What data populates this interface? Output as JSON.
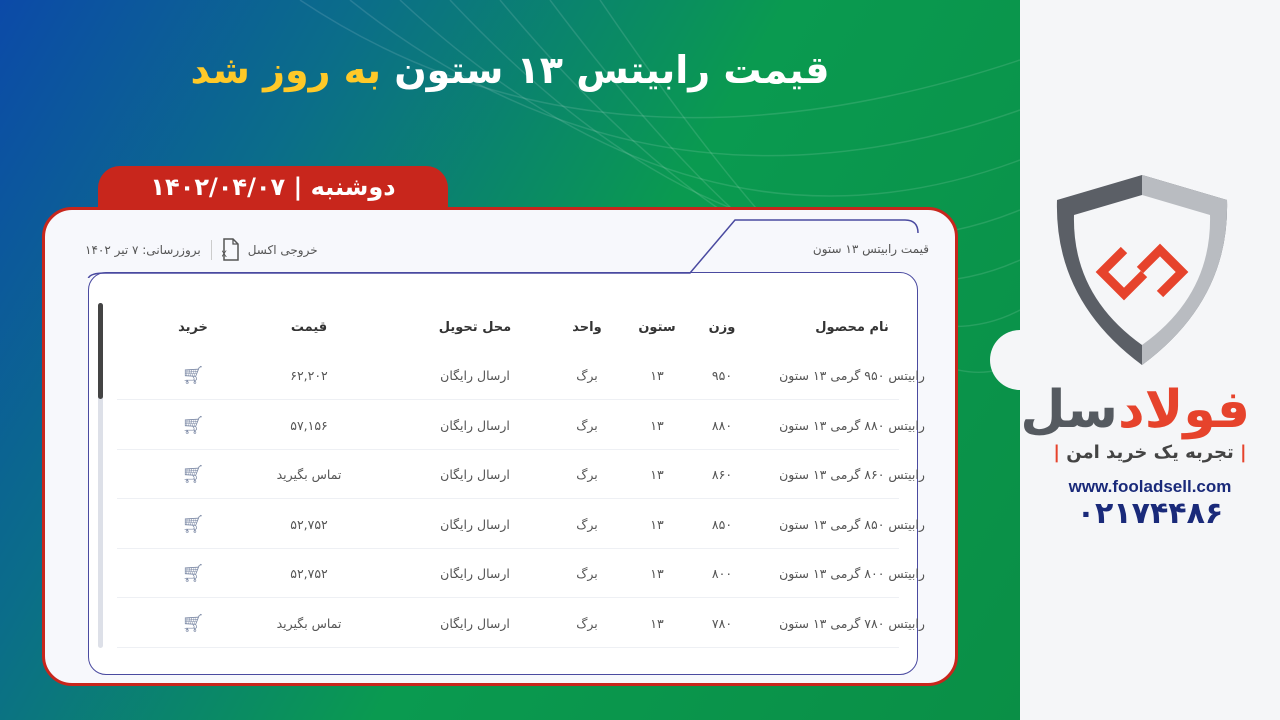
{
  "banner": {
    "title_main": "قیمت رابیتس ۱۳ ستون",
    "title_highlight": "به روز شد",
    "date": "دوشنبه  |  ۱۴۰۲/۰۴/۰۷"
  },
  "card": {
    "title": "قیمت رابیتس ۱۳ ستون",
    "excel_label": "خروجی اکسل",
    "updated": "بروزرسانی: ۷ تیر ۱۴۰۲"
  },
  "table": {
    "headers": [
      "نام محصول",
      "وزن",
      "ستون",
      "واحد",
      "محل تحویل",
      "قیمت",
      "خرید"
    ],
    "rows": [
      [
        "رابیتس ۹۵۰ گرمی ۱۳ ستون",
        "۹۵۰",
        "۱۳",
        "برگ",
        "ارسال رایگان",
        "۶۲,۲۰۲"
      ],
      [
        "رابیتس ۸۸۰ گرمی ۱۳ ستون",
        "۸۸۰",
        "۱۳",
        "برگ",
        "ارسال رایگان",
        "۵۷,۱۵۶"
      ],
      [
        "رابیتس ۸۶۰ گرمی ۱۳ ستون",
        "۸۶۰",
        "۱۳",
        "برگ",
        "ارسال رایگان",
        "تماس بگیرید"
      ],
      [
        "رابیتس ۸۵۰ گرمی ۱۳ ستون",
        "۸۵۰",
        "۱۳",
        "برگ",
        "ارسال رایگان",
        "۵۲,۷۵۲"
      ],
      [
        "رابیتس ۸۰۰ گرمی ۱۳ ستون",
        "۸۰۰",
        "۱۳",
        "برگ",
        "ارسال رایگان",
        "۵۲,۷۵۲"
      ],
      [
        "رابیتس ۷۸۰ گرمی ۱۳ ستون",
        "۷۸۰",
        "۱۳",
        "برگ",
        "ارسال رایگان",
        "تماس بگیرید"
      ]
    ]
  },
  "brand": {
    "name_part1": "فولاد",
    "name_part2": "سل",
    "tagline": "تجربه یک خرید امن",
    "url": "www.fooladsell.com",
    "phone": "۰۲۱۷۴۴۸۶",
    "colors": {
      "red": "#e6432c",
      "gray": "#555a60",
      "navy": "#1a2a7a",
      "accent_red": "#c8261c",
      "yellow": "#ffc928"
    }
  }
}
